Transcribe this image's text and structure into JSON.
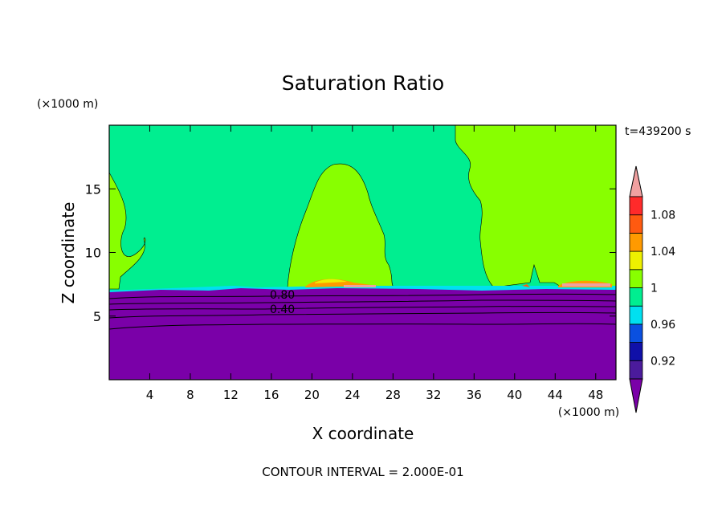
{
  "chart_data": {
    "type": "heatmap",
    "title": "Saturation Ratio",
    "xlabel": "X coordinate",
    "ylabel": "Z coordinate",
    "x_unit": "(×1000 m)",
    "y_unit": "(×1000 m)",
    "time_label": "t=439200 s",
    "footer": "CONTOUR INTERVAL = 2.000E-01",
    "xlim": [
      0,
      50
    ],
    "ylim": [
      0,
      20
    ],
    "x_ticks": [
      4,
      8,
      12,
      16,
      20,
      24,
      28,
      32,
      36,
      40,
      44,
      48
    ],
    "y_ticks": [
      5,
      10,
      15
    ],
    "contour_labels": [
      {
        "text": "0.80",
        "x": 17.5,
        "y": 6.6
      },
      {
        "text": "0.40",
        "x": 17.5,
        "y": 5.5
      }
    ],
    "colorbar": {
      "levels": [
        0.9,
        0.92,
        0.94,
        0.96,
        0.98,
        1.0,
        1.02,
        1.04,
        1.06,
        1.08,
        1.1
      ],
      "colors": [
        "#4B1B9C",
        "#1010A8",
        "#0A50E0",
        "#00E0F0",
        "#00EE90",
        "#88FF00",
        "#EEF000",
        "#FF9A00",
        "#FF5A10",
        "#FF2A2A"
      ],
      "under_color": "#7A00A8",
      "over_color": "#F0A0A0",
      "tick_labels": [
        "0.92",
        "0.96",
        "1",
        "1.04",
        "1.08"
      ],
      "tick_values": [
        0.92,
        0.96,
        1.0,
        1.04,
        1.08
      ]
    },
    "fields": {
      "background": "#00EE90",
      "dry_layer": "#7A00A8",
      "supersaturated": "#88FF00",
      "warm_spots": [
        "#FF9A00",
        "#F0A0A0",
        "#EEF000"
      ]
    }
  }
}
